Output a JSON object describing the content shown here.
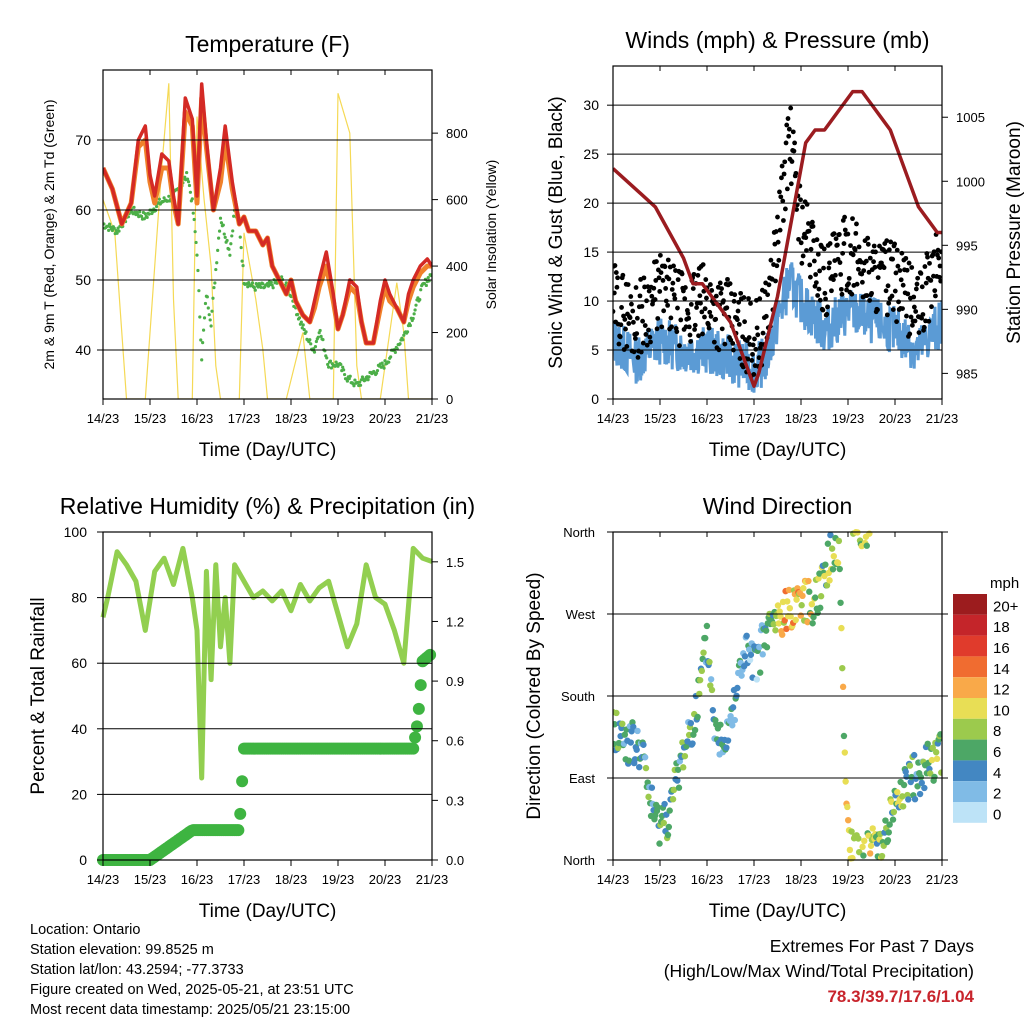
{
  "chart_data": [
    {
      "type": "line",
      "title": "Temperature (F)",
      "xlabel": "Time (Day/UTC)",
      "ylabel": "2m & 9m T (Red, Orange) & 2m Td (Green)",
      "ylabel_right": "Solar Insolation (Yellow)",
      "x_ticks": [
        "14/23",
        "15/23",
        "16/23",
        "17/23",
        "18/23",
        "19/23",
        "20/23",
        "21/23"
      ],
      "ylim": [
        33,
        80
      ],
      "y_ticks": [
        40,
        50,
        60,
        70
      ],
      "ylim_right": [
        0,
        990
      ],
      "y_ticks_right": [
        0,
        200,
        400,
        600,
        800
      ],
      "grid": "horizontal",
      "colors": {
        "t2m": "#d42a25",
        "t9m": "#f0812a",
        "td2m": "#4caf48",
        "solar": "#f5d955"
      },
      "series": [
        {
          "x": [
            0,
            0.2,
            0.4,
            0.6,
            0.75,
            0.9,
            1.0,
            1.1,
            1.25,
            1.4,
            1.5,
            1.6,
            1.75,
            1.9,
            2.0,
            2.1,
            2.2,
            2.35,
            2.5,
            2.6,
            2.75,
            2.9,
            3.0,
            3.1,
            3.25,
            3.4,
            3.5,
            3.6,
            3.75,
            3.9,
            4.0,
            4.1,
            4.25,
            4.4,
            4.5,
            4.6,
            4.75,
            4.9,
            5.0,
            5.1,
            5.25,
            5.4,
            5.5,
            5.6,
            5.75,
            5.9,
            6.0,
            6.1,
            6.25,
            6.4,
            6.5,
            6.6,
            6.75,
            6.9,
            7.0
          ],
          "values": [
            66,
            63,
            58,
            61,
            70,
            72,
            65,
            62,
            68,
            67,
            62,
            58,
            76,
            73,
            62,
            78,
            70,
            60,
            66,
            72,
            64,
            58,
            59,
            57,
            57,
            55,
            56,
            52,
            50,
            48,
            50,
            47,
            45,
            44,
            47,
            50,
            54,
            48,
            43,
            45,
            50,
            49,
            44,
            41,
            41,
            47,
            50,
            48,
            46,
            44,
            48,
            50,
            52,
            53,
            52
          ]
        },
        {
          "x": [
            0,
            0.2,
            0.4,
            0.6,
            0.75,
            0.9,
            1.0,
            1.1,
            1.25,
            1.4,
            1.5,
            1.6,
            1.75,
            1.9,
            2.0,
            2.1,
            2.2,
            2.35,
            2.5,
            2.6,
            2.75,
            2.9,
            3.0,
            3.1,
            3.25,
            3.4,
            3.5,
            3.6,
            3.75,
            3.9,
            4.0,
            4.1,
            4.25,
            4.4,
            4.5,
            4.6,
            4.75,
            4.9,
            5.0,
            5.1,
            5.25,
            5.4,
            5.5,
            5.6,
            5.75,
            5.9,
            6.0,
            6.1,
            6.25,
            6.4,
            6.5,
            6.6,
            6.75,
            6.9,
            7.0
          ],
          "values": [
            66,
            63,
            58,
            61,
            69,
            70,
            64,
            61,
            66,
            66,
            61,
            58,
            74,
            72,
            61,
            76,
            69,
            60,
            64,
            70,
            63,
            58,
            59,
            57,
            57,
            55,
            56,
            52,
            50,
            48,
            50,
            47,
            45,
            44,
            46,
            49,
            52,
            47,
            43,
            45,
            49,
            48,
            44,
            41,
            41,
            46,
            49,
            47,
            46,
            44,
            47,
            49,
            51,
            52,
            52
          ]
        },
        {
          "x": [
            0,
            0.3,
            0.6,
            0.9,
            1.2,
            1.5,
            1.8,
            1.9,
            2.0,
            2.1,
            2.2,
            2.3,
            2.5,
            2.7,
            2.8,
            2.9,
            3.0,
            3.2,
            3.5,
            3.8,
            4.0,
            4.2,
            4.4,
            4.5,
            4.6,
            4.8,
            5.0,
            5.2,
            5.4,
            5.6,
            5.8,
            6.0,
            6.2,
            6.4,
            6.6,
            6.8,
            7.0
          ],
          "values": [
            58,
            57,
            60,
            59,
            61,
            62,
            65,
            61,
            54,
            39,
            48,
            44,
            59,
            54,
            60,
            58,
            50,
            49,
            49,
            50,
            48,
            44,
            41,
            40,
            43,
            38,
            38,
            36,
            35,
            36,
            37,
            38,
            40,
            42,
            45,
            49,
            51
          ]
        },
        {
          "x": [
            0,
            0.25,
            0.4,
            0.5,
            0.6,
            0.9,
            1.25,
            1.4,
            1.5,
            1.6,
            1.9,
            2.0,
            2.15,
            2.3,
            2.4,
            2.5,
            2.6,
            2.9,
            3.0,
            3.25,
            3.4,
            3.5,
            3.6,
            3.9,
            4.25,
            4.4,
            4.5,
            4.6,
            4.9,
            5.0,
            5.25,
            5.4,
            5.5,
            5.6,
            5.9,
            6.25,
            6.4,
            6.5,
            6.6,
            7.0
          ],
          "values": [
            600,
            500,
            200,
            0,
            0,
            0,
            700,
            950,
            300,
            0,
            0,
            850,
            600,
            400,
            100,
            0,
            0,
            0,
            500,
            300,
            150,
            0,
            0,
            0,
            200,
            0,
            0,
            0,
            0,
            920,
            800,
            100,
            0,
            0,
            0,
            350,
            200,
            0,
            0,
            0
          ]
        }
      ]
    },
    {
      "type": "scatter",
      "title": "Winds (mph) & Pressure (mb)",
      "xlabel": "Time (Day/UTC)",
      "ylabel": "Sonic Wind & Gust (Blue, Black)",
      "ylabel_right": "Station Pressure (Maroon)",
      "x_ticks": [
        "14/23",
        "15/23",
        "16/23",
        "17/23",
        "18/23",
        "19/23",
        "20/23",
        "21/23"
      ],
      "ylim": [
        0,
        34
      ],
      "y_ticks": [
        0,
        5,
        10,
        15,
        20,
        25,
        30
      ],
      "ylim_right": [
        983,
        1009
      ],
      "y_ticks_right": [
        985,
        990,
        995,
        1000,
        1005
      ],
      "grid": "horizontal",
      "colors": {
        "wind": "#5b9bd5",
        "gust": "#000000",
        "pressure": "#9b1c20"
      },
      "series": [
        {
          "x": [
            0,
            0.5,
            1.0,
            1.5,
            2.0,
            2.5,
            3.0,
            3.25,
            3.5,
            3.75,
            4.0,
            4.5,
            5.0,
            5.5,
            6.0,
            6.5,
            7.0
          ],
          "values": [
            6,
            4,
            6,
            5,
            5,
            4,
            3,
            4,
            8,
            12,
            10,
            7,
            9,
            8,
            7,
            5,
            8
          ]
        },
        {
          "x": [
            0,
            0.5,
            1.0,
            1.5,
            2.0,
            2.5,
            3.0,
            3.25,
            3.5,
            3.75,
            4.0,
            4.5,
            5.0,
            5.5,
            6.0,
            6.5,
            7.0
          ],
          "values": [
            10,
            8,
            11,
            9,
            10,
            8,
            6,
            8,
            16,
            27,
            18,
            12,
            15,
            13,
            12,
            9,
            15
          ]
        },
        {
          "x": [
            0,
            0.3,
            0.6,
            0.9,
            1.2,
            1.5,
            1.7,
            1.9,
            2.1,
            2.3,
            2.5,
            2.7,
            2.9,
            3.0,
            3.1,
            3.3,
            3.5,
            3.7,
            3.9,
            4.1,
            4.3,
            4.5,
            4.7,
            4.9,
            5.1,
            5.3,
            5.5,
            5.7,
            5.9,
            6.1,
            6.3,
            6.5,
            6.7,
            6.9,
            7.0
          ],
          "values": [
            1001,
            1000,
            999,
            998,
            996,
            994,
            992,
            992,
            991,
            990,
            989,
            987,
            985,
            984,
            985,
            988,
            991,
            995,
            999,
            1003,
            1004,
            1004,
            1005,
            1006,
            1007,
            1007,
            1006,
            1005,
            1004,
            1002,
            1000,
            998,
            997,
            996,
            996
          ]
        }
      ]
    },
    {
      "type": "line",
      "title": "Relative Humidity (%) & Precipitation (in)",
      "xlabel": "Time (Day/UTC)",
      "ylabel": "Percent & Total Rainfall",
      "x_ticks": [
        "14/23",
        "15/23",
        "16/23",
        "17/23",
        "18/23",
        "19/23",
        "20/23",
        "21/23"
      ],
      "ylim": [
        0,
        100
      ],
      "y_ticks": [
        0,
        20,
        40,
        60,
        80,
        100
      ],
      "ylim_right": [
        0,
        1.65
      ],
      "y_ticks_right": [
        "0.0",
        "0.3",
        "0.6",
        "0.9",
        "1.2",
        "1.5"
      ],
      "grid": "horizontal",
      "colors": {
        "rh": "#92cf50",
        "precip": "#3eb441"
      },
      "series": [
        {
          "x": [
            0,
            0.1,
            0.3,
            0.5,
            0.7,
            0.9,
            1.1,
            1.3,
            1.5,
            1.7,
            1.9,
            2.0,
            2.1,
            2.2,
            2.3,
            2.4,
            2.5,
            2.6,
            2.7,
            2.8,
            3.0,
            3.2,
            3.4,
            3.6,
            3.8,
            4.0,
            4.2,
            4.4,
            4.6,
            4.8,
            5.0,
            5.2,
            5.4,
            5.6,
            5.8,
            6.0,
            6.2,
            6.4,
            6.6,
            6.8,
            7.0
          ],
          "values": [
            74,
            80,
            94,
            90,
            85,
            70,
            88,
            92,
            84,
            95,
            80,
            70,
            25,
            88,
            55,
            90,
            65,
            80,
            60,
            90,
            85,
            80,
            82,
            79,
            82,
            76,
            84,
            79,
            83,
            85,
            75,
            65,
            72,
            90,
            80,
            78,
            70,
            60,
            95,
            92,
            91
          ]
        },
        {
          "x": [
            0,
            1.0,
            1.9,
            2.0,
            2.9,
            3.0,
            4.0,
            5.0,
            6.0,
            6.6,
            6.7,
            6.8,
            7.0
          ],
          "values": [
            0,
            0,
            0.15,
            0.15,
            0.15,
            0.56,
            0.56,
            0.56,
            0.56,
            0.56,
            0.7,
            1.0,
            1.04
          ]
        }
      ]
    },
    {
      "type": "scatter",
      "title": "Wind Direction",
      "xlabel": "Time (Day/UTC)",
      "ylabel": "Direction (Colored By Speed)",
      "x_ticks": [
        "14/23",
        "15/23",
        "16/23",
        "17/23",
        "18/23",
        "19/23",
        "20/23",
        "21/23"
      ],
      "y_ticks": [
        "North",
        "East",
        "South",
        "West",
        "North"
      ],
      "ylim": [
        0,
        360
      ],
      "grid": "horizontal",
      "legend": {
        "title": "mph",
        "placement": "right",
        "labels": [
          "20+",
          "18",
          "16",
          "14",
          "12",
          "10",
          "8",
          "6",
          "4",
          "2",
          "0"
        ],
        "colors": [
          "#9c1c1e",
          "#c4252a",
          "#e03b2c",
          "#f06c30",
          "#f9a949",
          "#e8de55",
          "#9cca4d",
          "#4da766",
          "#4387c2",
          "#80bbe6",
          "#bde3f7"
        ]
      },
      "series": [
        {
          "x": [
            0,
            0.3,
            0.6,
            0.9,
            1.2,
            1.5,
            1.8,
            2.0,
            2.2,
            2.4,
            2.6,
            2.8,
            3.0,
            3.2,
            3.4,
            3.6,
            3.8,
            4.0,
            4.2,
            4.4,
            4.6,
            4.8,
            5.0,
            5.2,
            5.4,
            5.6,
            5.8,
            6.0,
            6.2,
            6.4,
            6.6,
            6.8,
            7.0
          ],
          "values": [
            145,
            130,
            120,
            40,
            50,
            120,
            170,
            240,
            130,
            140,
            180,
            230,
            210,
            240,
            260,
            265,
            280,
            290,
            280,
            300,
            330,
            345,
            20,
            10,
            5,
            20,
            30,
            60,
            80,
            90,
            100,
            110,
            120
          ]
        }
      ]
    }
  ],
  "info": {
    "location": "Location: Ontario",
    "elevation": "Station elevation: 99.8525 m",
    "latlon": "Station lat/lon: 43.2594; -77.3733",
    "created": "Figure created on Wed, 2025-05-21, at 23:51 UTC",
    "recent": "Most recent data timestamp: 2025/05/21 23:15:00"
  },
  "extremes": {
    "title": "Extremes For Past 7 Days",
    "subtitle": "(High/Low/Max Wind/Total Precipitation)",
    "values": "78.3/39.7/17.6/1.04"
  }
}
